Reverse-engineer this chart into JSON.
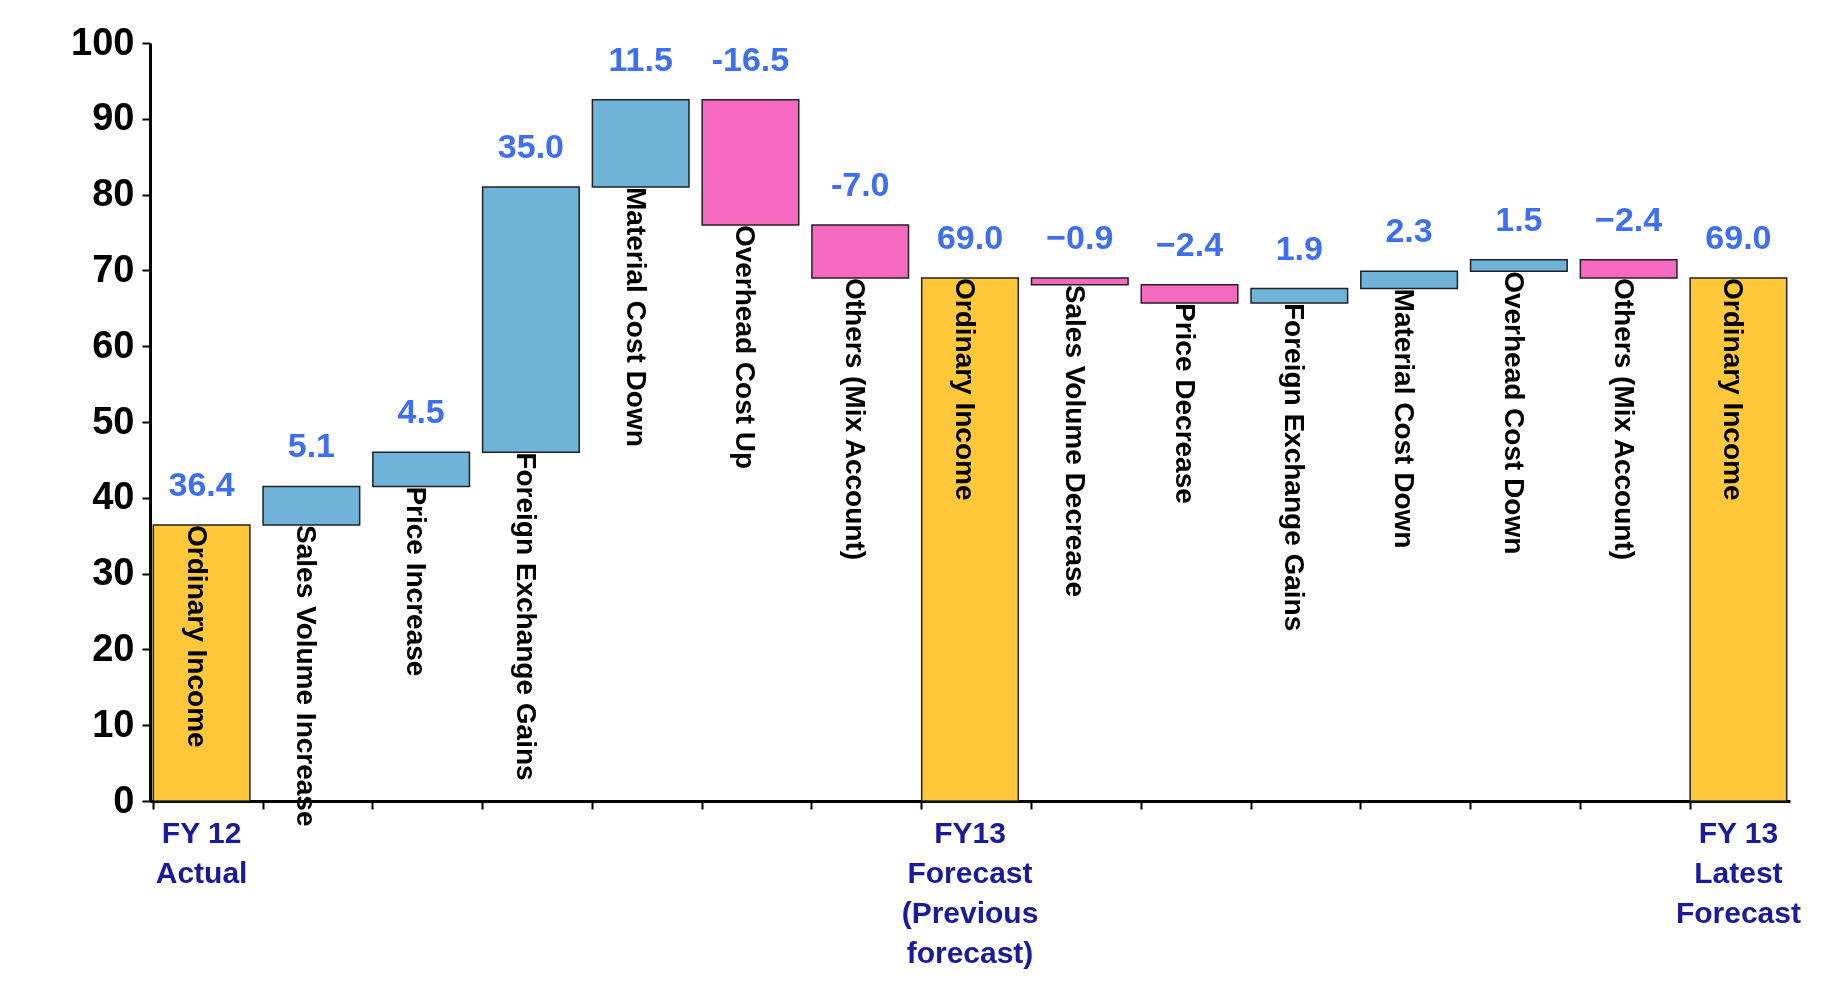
{
  "chart_data": {
    "type": "bar",
    "categories": [
      "Ordinary Income",
      "Sales Volume Increase",
      "Price Increase",
      "Foreign Exchange Gains",
      "Material Cost Down",
      "Overhead Cost Up",
      "Others (Mix Account)",
      "Ordinary Income",
      "Sales Volume Decrease",
      "Price Decrease",
      "Foreign Exchange Gains",
      "Material Cost Down",
      "Overhead Cost Down",
      "Others (Mix Account)",
      "Ordinary Income"
    ],
    "values": [
      36.4,
      5.1,
      4.5,
      35.0,
      11.5,
      -16.5,
      -7.0,
      69.0,
      -0.9,
      -2.4,
      1.9,
      2.3,
      1.5,
      -2.4,
      69.0
    ],
    "base": [
      0,
      36.4,
      41.5,
      46.0,
      81.0,
      92.5,
      76.0,
      0,
      69.0,
      68.1,
      65.7,
      67.6,
      69.9,
      71.4,
      0
    ],
    "colors": [
      "#ffc83a",
      "#6fb3d9",
      "#6fb3d9",
      "#6fb3d9",
      "#6fb3d9",
      "#f569c0",
      "#f569c0",
      "#ffc83a",
      "#f569c0",
      "#f569c0",
      "#6fb3d9",
      "#6fb3d9",
      "#6fb3d9",
      "#f569c0",
      "#ffc83a"
    ],
    "value_labels": [
      "36.4",
      "5.1",
      "4.5",
      "35.0",
      "11.5",
      "-16.5",
      "-7.0",
      "69.0",
      "−0.9",
      "−2.4",
      "1.9",
      "2.3",
      "1.5",
      "−2.4",
      "69.0"
    ],
    "ylim": [
      0,
      100
    ],
    "yticks": [
      0,
      10,
      20,
      30,
      40,
      50,
      60,
      70,
      80,
      90,
      100
    ],
    "grid": false,
    "annotations": [
      "FY 12\nActual",
      "FY13\nForecast\n(Previous\nforecast)",
      "FY 13\nLatest\nForecast"
    ]
  }
}
